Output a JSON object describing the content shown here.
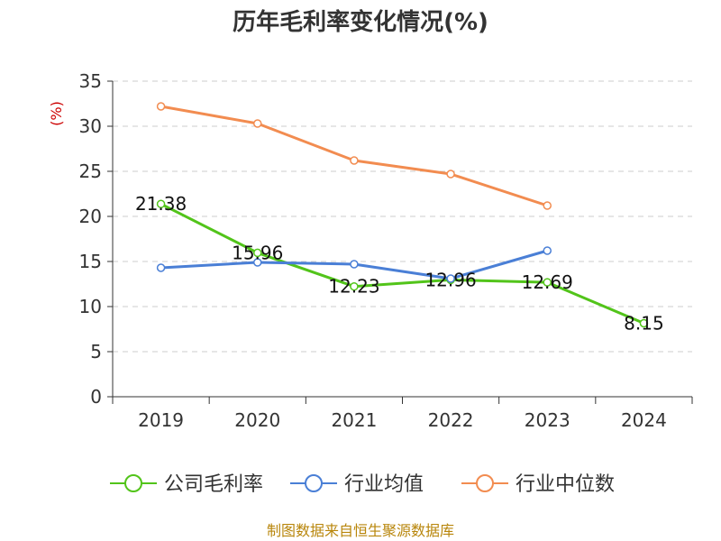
{
  "chart_data": {
    "type": "line",
    "title": "历年毛利率变化情况(%)",
    "ylabel": "(%)",
    "xlabel": "",
    "categories": [
      "2019",
      "2020",
      "2021",
      "2022",
      "2023",
      "2024"
    ],
    "ylim": [
      0,
      35
    ],
    "yticks": [
      "0",
      "5",
      "10",
      "15",
      "20",
      "25",
      "30",
      "35"
    ],
    "grid": true,
    "legend_position": "bottom",
    "series": [
      {
        "name": "公司毛利率",
        "color": "#52c41a",
        "values": [
          21.38,
          15.96,
          12.23,
          12.96,
          12.69,
          8.15
        ],
        "labels": [
          "21.38",
          "15.96",
          "12.23",
          "12.96",
          "12.69",
          "8.15"
        ]
      },
      {
        "name": "行业均值",
        "color": "#4a7fd6",
        "values": [
          14.3,
          14.9,
          14.7,
          13.1,
          16.2,
          null
        ]
      },
      {
        "name": "行业中位数",
        "color": "#f28c50",
        "values": [
          32.2,
          30.3,
          26.2,
          24.7,
          21.2,
          null
        ]
      }
    ],
    "source": "制图数据来自恒生聚源数据库"
  }
}
